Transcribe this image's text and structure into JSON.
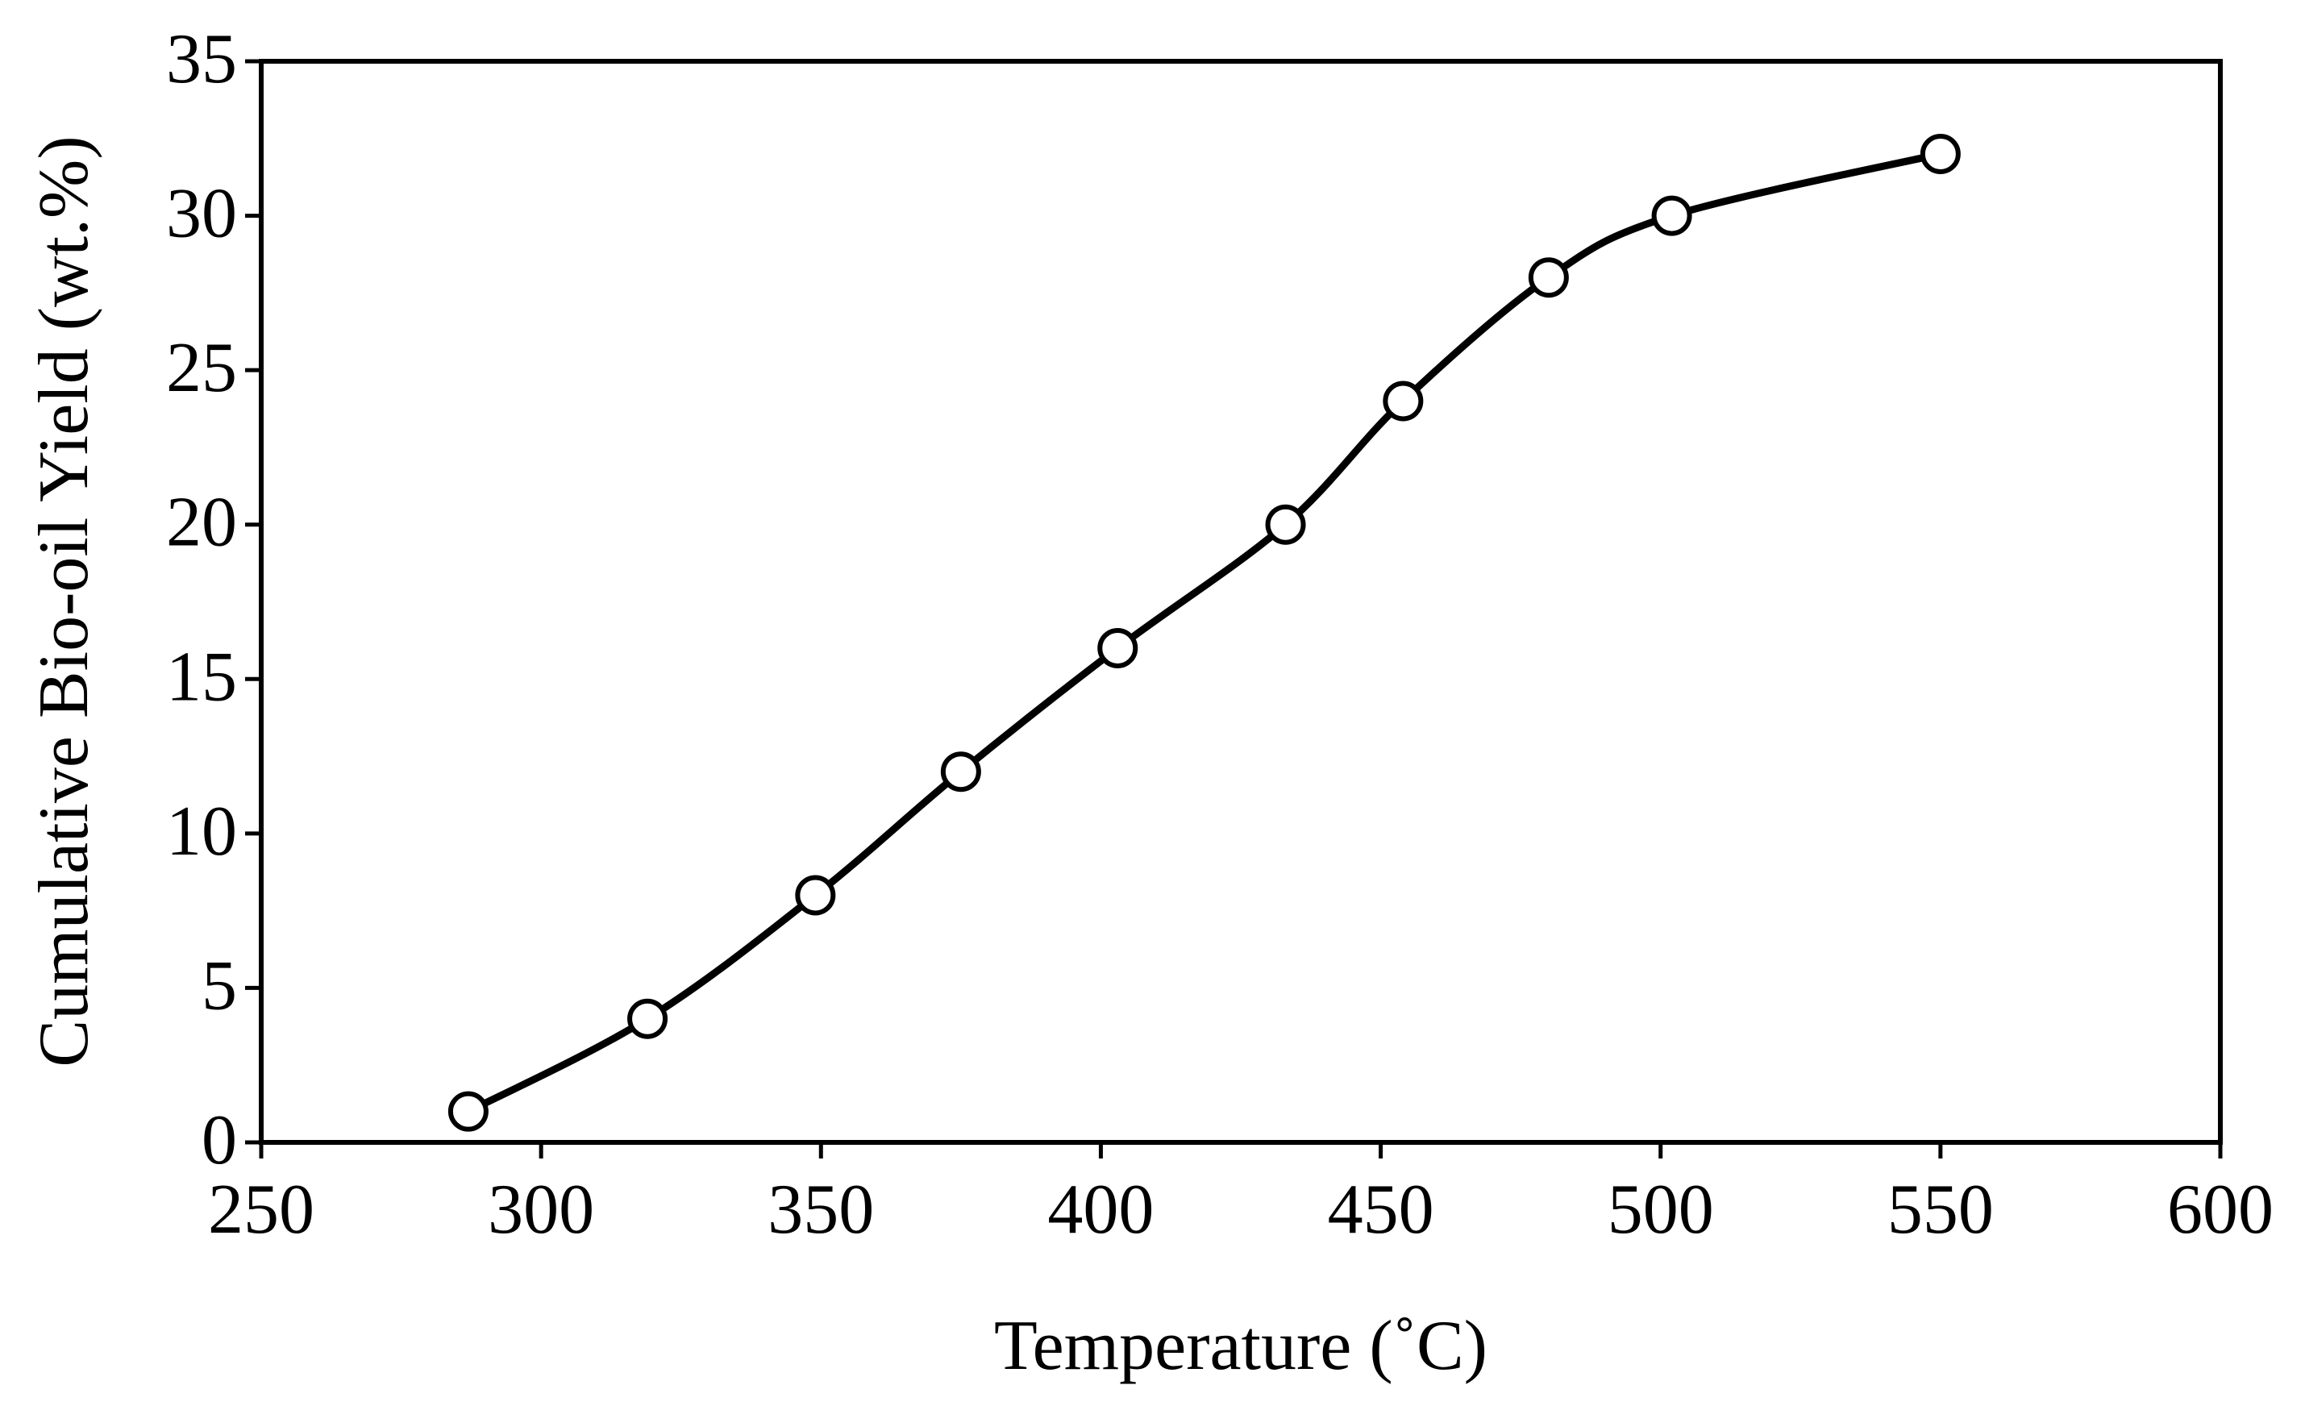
{
  "chart_data": {
    "type": "line",
    "title": "",
    "xlabel": "Temperature (˚C)",
    "ylabel": "Cumulative Bio-oil Yield (wt.%)",
    "xlim": [
      250,
      600
    ],
    "ylim": [
      0,
      35
    ],
    "xticks": [
      250,
      300,
      350,
      400,
      450,
      500,
      550,
      600
    ],
    "yticks": [
      0,
      5,
      10,
      15,
      20,
      25,
      30,
      35
    ],
    "grid": false,
    "legend": "none",
    "series": [
      {
        "name": "Cumulative Bio-oil Yield",
        "marker": "open-circle",
        "line": "smooth",
        "color": "#000000",
        "x": [
          287,
          319,
          349,
          375,
          403,
          433,
          454,
          480,
          502,
          550
        ],
        "y": [
          1,
          4,
          8,
          12,
          16,
          20,
          24,
          28,
          30,
          32
        ]
      }
    ]
  }
}
